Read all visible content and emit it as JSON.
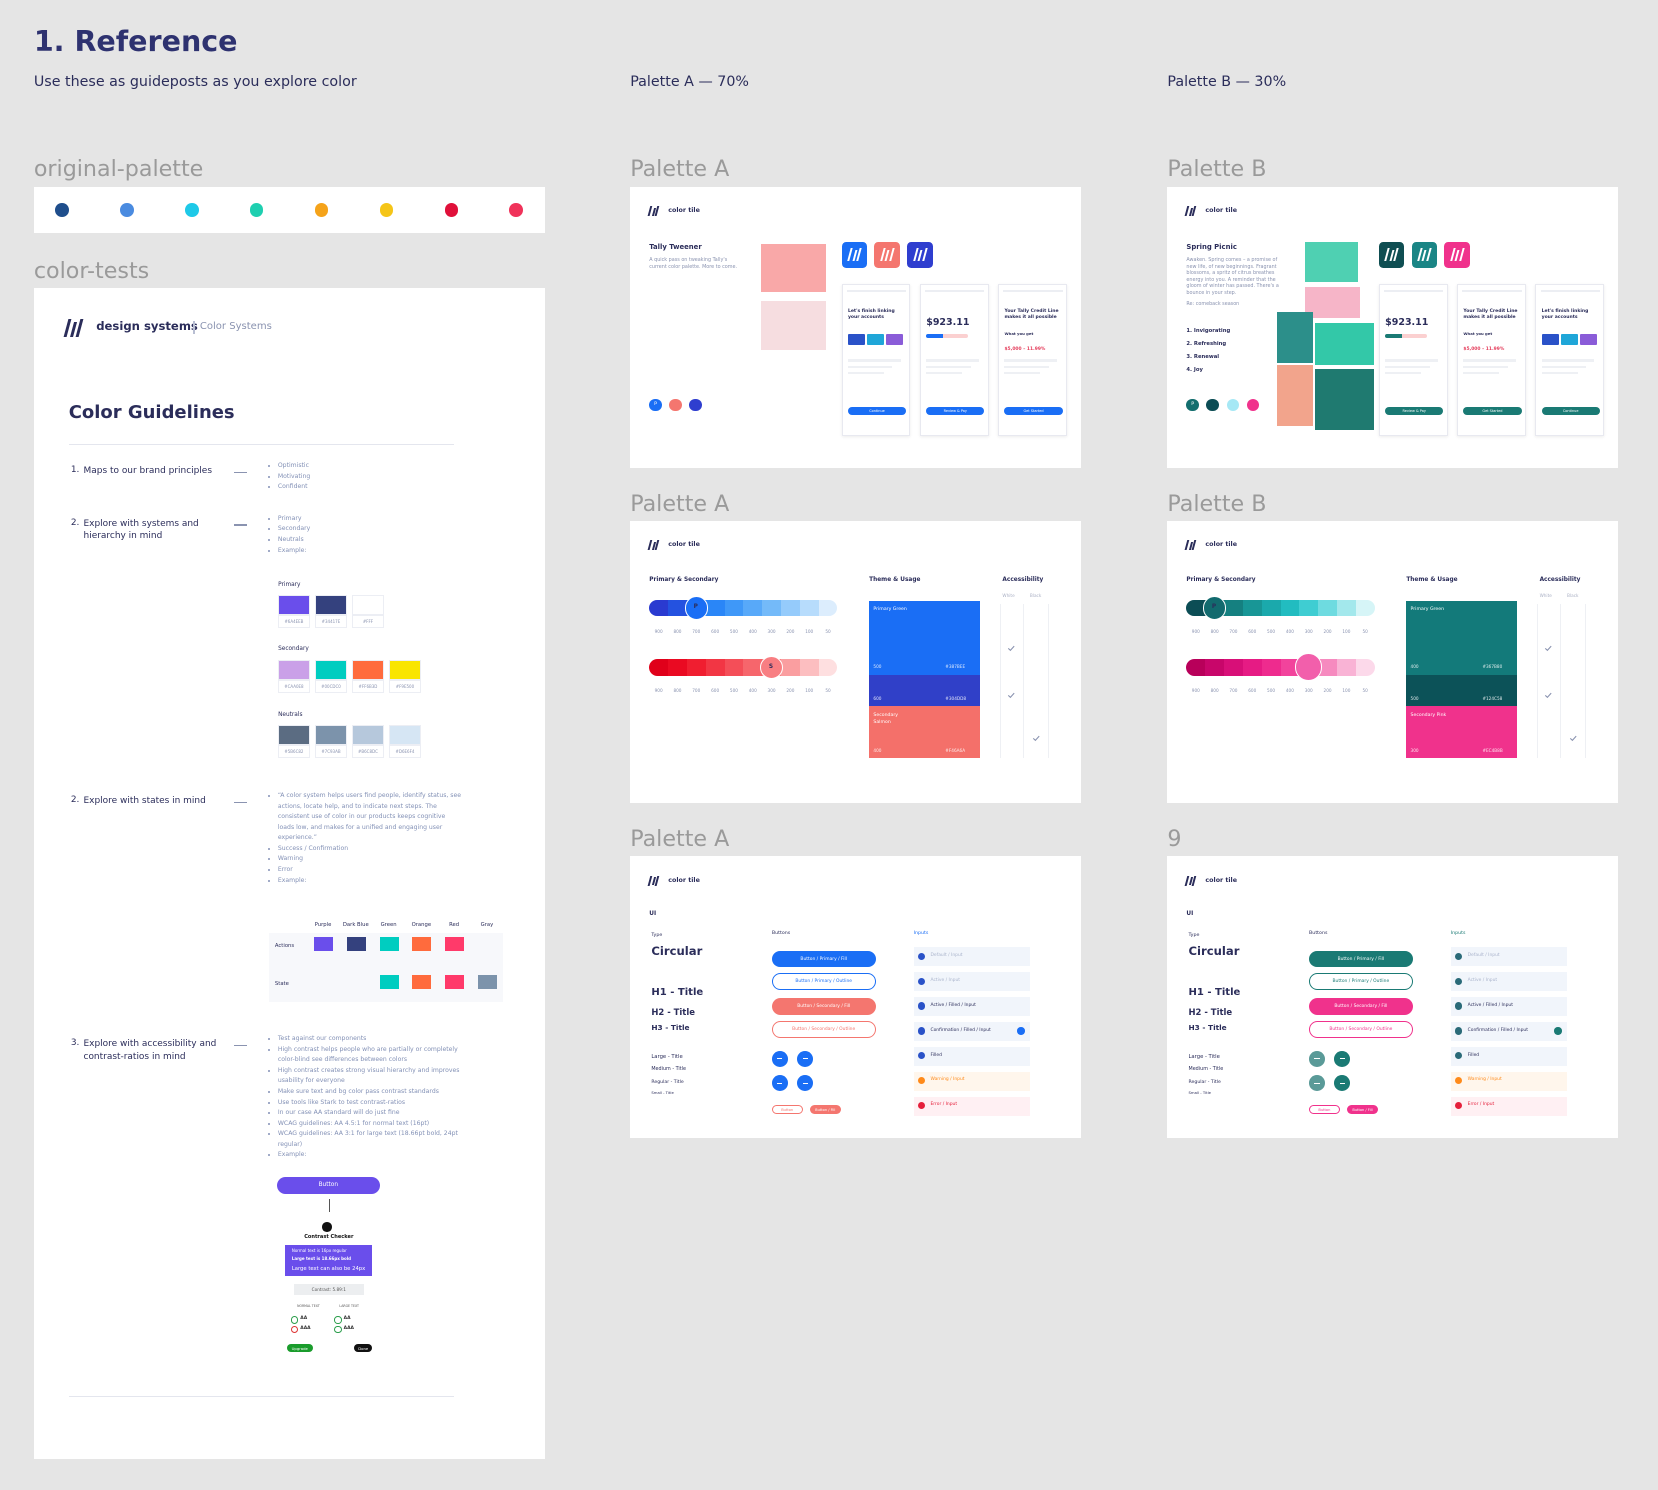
{
  "header": {
    "title": "1. Reference",
    "subtitle": "Use these as guideposts as you explore color",
    "palette_a": "Palette A — 70%",
    "palette_b": "Palette B — 30%"
  },
  "original_palette": {
    "label": "original-palette",
    "colors": [
      "#1f4e8c",
      "#4a8be0",
      "#1ec9e8",
      "#1ecfb0",
      "#f5a31a",
      "#f5c518",
      "#e0103a",
      "#f0325a"
    ]
  },
  "color_tests": {
    "label": "color-tests",
    "brand": "design systems",
    "section": "Color Systems",
    "heading": "Color Guidelines",
    "items": [
      {
        "number": "1.",
        "title": "Maps to our brand principles",
        "bullets": [
          "Optimistic",
          "Motivating",
          "Confident"
        ]
      },
      {
        "number": "2.",
        "title": "Explore with systems and hierarchy in mind",
        "bullets": [
          "Primary",
          "Secondary",
          "Neutrals",
          "Example:"
        ]
      },
      {
        "number": "2.",
        "title": "Explore with states in mind",
        "bullets": [
          "“A color system helps users find people, identify status, see actions, locate help, and to indicate next steps. The consistent use of color in our products keeps cognitive loads low, and makes for a unified and engaging user experience.”",
          "Success / Confirmation",
          "Warning",
          "Error",
          "Example:"
        ]
      },
      {
        "number": "3.",
        "title": "Explore with accessibility and contrast-ratios in mind",
        "bullets": [
          "Test against our components",
          "High contrast helps people who are partially or completely color-blind see differences between colors",
          "High contrast creates strong visual hierarchy and improves usability for everyone",
          "Make sure text and bg color pass contrast standards",
          "Use tools like Stark to test contrast-ratios",
          "In our case AA standard will do just fine",
          "WCAG guidelines: AA 4.5:1 for normal text (16pt)",
          "WCAG guidelines: AA 3:1 for large text (18.66pt bold, 24pt regular)",
          "Example:"
        ]
      }
    ],
    "swatch_groups": [
      {
        "label": "Primary",
        "swatches": [
          {
            "color": "#6a4eeb",
            "hex": "#6A4EEB"
          },
          {
            "color": "#34417e",
            "hex": "#34417E"
          },
          {
            "color": "#ffffff",
            "hex": "#FFF"
          }
        ]
      },
      {
        "label": "Secondary",
        "swatches": [
          {
            "color": "#caa0e8",
            "hex": "#CAA0E8"
          },
          {
            "color": "#00cdc0",
            "hex": "#00CDC0"
          },
          {
            "color": "#ff6b3d",
            "hex": "#FF6B3D"
          },
          {
            "color": "#f9e500",
            "hex": "#F9E500"
          }
        ]
      },
      {
        "label": "Neutrals",
        "swatches": [
          {
            "color": "#5b6c82",
            "hex": "#5B6C82"
          },
          {
            "color": "#7c93ab",
            "hex": "#7C93AB"
          },
          {
            "color": "#b6c8dc",
            "hex": "#B6C8DC"
          },
          {
            "color": "#d6e6f4",
            "hex": "#D6E6F4"
          }
        ]
      }
    ],
    "states": {
      "columns": [
        "Purple",
        "Dark Blue",
        "Green",
        "Orange",
        "Red",
        "Gray"
      ],
      "rows": [
        {
          "label": "Actions",
          "colors": [
            "#6a4eeb",
            "#34417e",
            "#00cdc0",
            "#ff6b3d",
            "#ff3a6a",
            null
          ]
        },
        {
          "label": "State",
          "colors": [
            null,
            null,
            "#00cdc0",
            "#ff6b3d",
            "#ff3a6a",
            "#7c93ab"
          ]
        }
      ]
    },
    "contrast": {
      "button": "Button",
      "checker": "Contrast Checker",
      "sample": [
        "Normal text is 16px regular",
        "Large text is 18.66px bold",
        "Large text can also be 24px"
      ],
      "ratio": "Contrast: 5.89:1",
      "normal": "NORMAL TEXT",
      "large": "LARGE TEXT",
      "levels": [
        "AA",
        "AAA"
      ],
      "upgrade": "Upgrade",
      "done": "Done"
    }
  },
  "moodboards": [
    {
      "label": "Palette A",
      "brand": "color tile",
      "title": "Tally Tweener",
      "description": "A quick pass on tweaking Tally's current color palette. More to come.",
      "icon_colors": [
        "#1a6ef5",
        "#f4766f",
        "#2f3ecf"
      ],
      "dot_letter": "P",
      "dot_colors": [
        "#1a6ef5",
        "#f4766f",
        "#2f3ecf"
      ],
      "accent": "#1a6ef5",
      "screens": [
        {
          "title": "Let's finish linking your accounts",
          "button": "Continue"
        },
        {
          "title": "$923.11",
          "button": "Review & Pay"
        },
        {
          "title": "Your Tally Credit Line makes it all possible",
          "subtitle": "What you get",
          "amount": "$5,000 – 11.99%",
          "button": "Get Started"
        }
      ]
    },
    {
      "label": "Palette B",
      "brand": "color tile",
      "title": "Spring Picnic",
      "description": "Awaken. Spring comes – a promise of new life, of new beginnings. Fragrant blossoms, a spritz of citrus breathes energy into you. A reminder that the gloom of winter has passed. There's a bounce in your step.",
      "note": "Re: comeback season",
      "list": [
        "1. Invigorating",
        "2. Refreshing",
        "3. Renewal",
        "4. Joy"
      ],
      "icon_colors": [
        "#0f4e52",
        "#1a8585",
        "#f0328c"
      ],
      "dot_letter": "P",
      "dot_colors": [
        "#136e6e",
        "#0c4d55",
        "#a6e8f5",
        "#f0328c"
      ],
      "accent": "#1a7a74",
      "screens": [
        {
          "title": "$923.11",
          "button": "Review & Pay"
        },
        {
          "title": "Your Tally Credit Line makes it all possible",
          "subtitle": "What you get",
          "amount": "$5,000 – 11.99%",
          "button": "Get Started"
        },
        {
          "title": "Let's finish linking your accounts",
          "button": "Continue"
        }
      ]
    }
  ],
  "scales": [
    {
      "label": "Palette A",
      "brand": "color tile",
      "ramp_heading": "Primary & Secondary",
      "usage_heading": "Theme & Usage",
      "access_heading": "Accessibility",
      "white": "White",
      "black": "Black",
      "shades": [
        900,
        800,
        700,
        600,
        500,
        400,
        300,
        200,
        100,
        50
      ],
      "ramps": [
        {
          "colors": [
            "#2a3ad0",
            "#2452e0",
            "#1a6ef5",
            "#2a86f7",
            "#3f98f8",
            "#58a9f9",
            "#74baf9",
            "#95cbfb",
            "#b7dcfc",
            "#dcedfd"
          ],
          "marker": 2,
          "letter": "P"
        },
        {
          "colors": [
            "#e0001a",
            "#ea0a22",
            "#f01e30",
            "#f23644",
            "#f44e58",
            "#f6666c",
            "#f87e82",
            "#fa9ea0",
            "#fcbec0",
            "#fedfe0"
          ],
          "marker": 6,
          "letter": "S"
        }
      ],
      "usage": [
        {
          "title": "Primary Green",
          "shade": 500,
          "hex": "#387BEE",
          "color": "#1a6ef5"
        },
        {
          "shade": 600,
          "hex": "#304DD8",
          "color": "#3040c8"
        },
        {
          "title": "Secondary Salmon",
          "shade": 400,
          "hex": "#F46A6A",
          "color": "#f4706a"
        }
      ]
    },
    {
      "label": "Palette B",
      "brand": "color tile",
      "ramp_heading": "Primary & Secondary",
      "usage_heading": "Theme & Usage",
      "access_heading": "Accessibility",
      "white": "White",
      "black": "Black",
      "shades": [
        900,
        800,
        700,
        600,
        500,
        400,
        300,
        200,
        100,
        50
      ],
      "ramps": [
        {
          "colors": [
            "#0c4d55",
            "#126a6e",
            "#158080",
            "#189696",
            "#1ba9ac",
            "#22bcc0",
            "#3fcdd2",
            "#6edbe0",
            "#a3e8ec",
            "#d6f5f7"
          ],
          "marker": 1,
          "letter": "P"
        },
        {
          "colors": [
            "#b8005a",
            "#c8066a",
            "#d80f78",
            "#e61b84",
            "#ee2b8e",
            "#f2439c",
            "#f25fab",
            "#f68abf",
            "#f9b3d5",
            "#fcd9ea"
          ],
          "marker": 6
        }
      ],
      "usage": [
        {
          "title": "Primary Green",
          "shade": 400,
          "hex": "#367B80",
          "color": "#137a7a"
        },
        {
          "shade": 500,
          "hex": "#124C58",
          "color": "#0c5258"
        },
        {
          "title": "Secondary Pink",
          "shade": 300,
          "hex": "#EC4B8B",
          "color": "#f0328c"
        }
      ]
    }
  ],
  "ui_kits": [
    {
      "label": "Palette A",
      "brand": "color tile",
      "ui": "UI",
      "type": "Type",
      "font": "Circular",
      "headings": [
        "H1 - Title",
        "H2 - Title",
        "H3 - Title"
      ],
      "sizes": [
        "Large - Title",
        "Medium - Title",
        "Regular - Title",
        "Small - Title"
      ],
      "buttons_heading": "Buttons",
      "buttons": [
        "Button / Primary / Fill",
        "Button / Primary / Outline",
        "Button / Secondary / Fill",
        "Button / Secondary / Outline"
      ],
      "small_buttons": [
        "Button",
        "Button / Fill"
      ],
      "inputs_heading": "Inputs",
      "inputs": [
        "Default / Input",
        "Active / Input",
        "Active / Filled / Input",
        "Confirmation / Filled / Input",
        "Filled",
        "Warning / Input",
        "Error / Input"
      ],
      "primary": "#1a6ef5",
      "secondary": "#f4766f"
    },
    {
      "label": "9",
      "brand": "color tile",
      "ui": "UI",
      "type": "Type",
      "font": "Circular",
      "headings": [
        "H1 - Title",
        "H2 - Title",
        "H3 - Title"
      ],
      "sizes": [
        "Large - Title",
        "Medium - Title",
        "Regular - Title",
        "Small - Title"
      ],
      "buttons_heading": "Buttons",
      "buttons": [
        "Button / Primary / Fill",
        "Button / Primary / Outline",
        "Button / Secondary / Fill",
        "Button / Secondary / Outline"
      ],
      "small_buttons": [
        "Button",
        "Button / Fill"
      ],
      "inputs_heading": "Inputs",
      "inputs": [
        "Default / Input",
        "Active / Input",
        "Active / Filled / Input",
        "Confirmation / Filled / Input",
        "Filled",
        "Warning / Input",
        "Error / Input"
      ],
      "primary": "#1a7a74",
      "secondary": "#f0328c"
    }
  ]
}
